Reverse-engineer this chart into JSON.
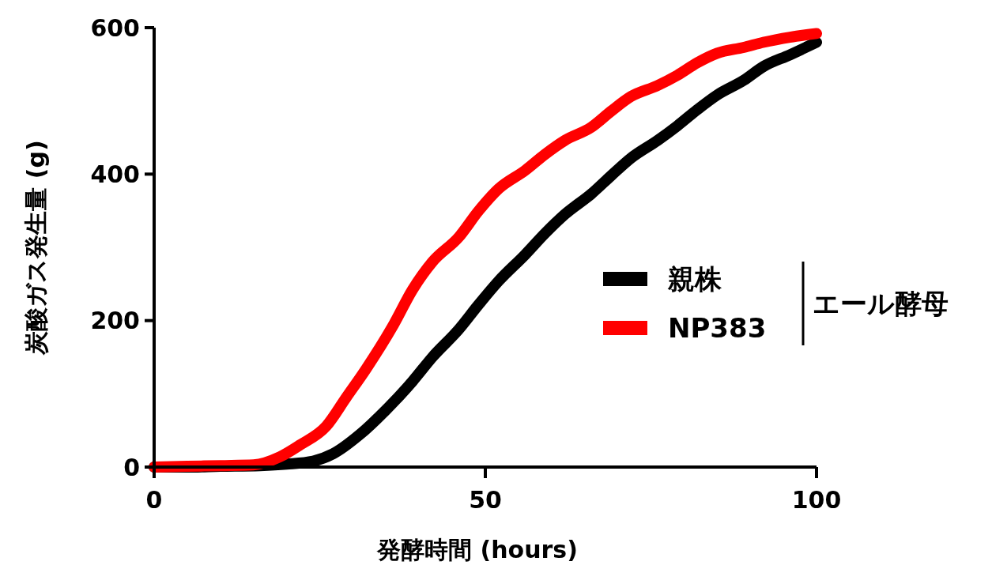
{
  "chart_data": {
    "type": "line",
    "xlabel": "発酵時間 (hours)",
    "ylabel": "炭酸ガス発生量 (g)",
    "legend_title": "エール酵母",
    "xlim": [
      0,
      100
    ],
    "xticks": [
      0,
      50,
      100
    ],
    "ylim": [
      0,
      600
    ],
    "yticks": [
      0,
      200,
      400,
      600
    ],
    "grid": false,
    "legend": "right",
    "marker": "none",
    "line_style": "solid",
    "series": [
      {
        "name": "親株",
        "color": "#000000",
        "x": [
          0,
          5,
          10,
          16,
          20,
          24,
          27,
          31,
          35,
          39,
          42,
          46,
          49,
          52,
          56,
          59,
          62,
          66,
          69,
          72,
          76,
          79,
          82,
          85,
          89,
          92,
          96,
          100
        ],
        "values": [
          0,
          0,
          1,
          2,
          4,
          8,
          18,
          44,
          78,
          117,
          150,
          188,
          222,
          254,
          290,
          319,
          345,
          373,
          398,
          422,
          446,
          466,
          488,
          508,
          528,
          547,
          563,
          580
        ]
      },
      {
        "name": "NP383",
        "color": "#ff0000",
        "x": [
          0,
          5,
          10,
          15,
          19,
          22,
          26,
          29,
          32,
          36,
          39,
          42,
          46,
          49,
          52,
          56,
          59,
          62,
          66,
          69,
          72,
          76,
          79,
          82,
          85,
          89,
          92,
          96,
          100
        ],
        "values": [
          0,
          1,
          2,
          3,
          14,
          30,
          56,
          95,
          134,
          192,
          242,
          280,
          314,
          350,
          380,
          405,
          427,
          446,
          464,
          486,
          506,
          521,
          535,
          552,
          565,
          573,
          580,
          587,
          592
        ]
      }
    ]
  }
}
